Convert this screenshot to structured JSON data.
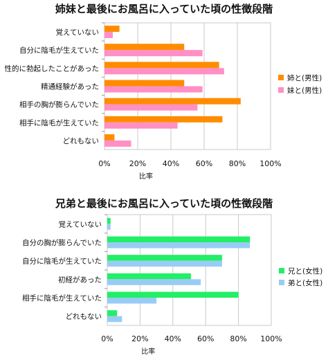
{
  "chart_data": [
    {
      "type": "bar",
      "orientation": "horizontal",
      "title": "姉妹と最後にお風呂に入っていた頃の性徴段階",
      "xlabel": "比率",
      "xlim": [
        0,
        100
      ],
      "xticks": [
        "0%",
        "20%",
        "40%",
        "60%",
        "80%",
        "100%"
      ],
      "grid": true,
      "legend_position": "right",
      "categories": [
        "覚えていない",
        "自分に陰毛が生えていた",
        "性的に勃起したことがあった",
        "精通経験があった",
        "相手の胸が膨らんでいた",
        "相手に陰毛が生えていた",
        "どれもない"
      ],
      "series": [
        {
          "name": "姉と(男性)",
          "color": "#ff8c00",
          "values": [
            9,
            48,
            69,
            48,
            82,
            71,
            6
          ]
        },
        {
          "name": "妹と(男性)",
          "color": "#ff8fc4",
          "values": [
            5,
            59,
            72,
            59,
            56,
            44,
            16
          ]
        }
      ]
    },
    {
      "type": "bar",
      "orientation": "horizontal",
      "title": "兄弟と最後にお風呂に入っていた頃の性徴段階",
      "xlabel": "比率",
      "xlim": [
        0,
        100
      ],
      "xticks": [
        "0%",
        "20%",
        "40%",
        "60%",
        "80%",
        "100%"
      ],
      "grid": true,
      "legend_position": "right",
      "categories": [
        "覚えていない",
        "自分の胸が膨らんでいた",
        "自分に陰毛が生えていた",
        "初経があった",
        "相手に陰毛が生えていた",
        "どれもない"
      ],
      "series": [
        {
          "name": "兄と(女性)",
          "color": "#22ee66",
          "values": [
            2,
            87,
            70,
            51,
            80,
            6
          ]
        },
        {
          "name": "弟と(女性)",
          "color": "#99ccf5",
          "values": [
            2,
            87,
            70,
            57,
            30,
            9
          ]
        }
      ]
    }
  ]
}
